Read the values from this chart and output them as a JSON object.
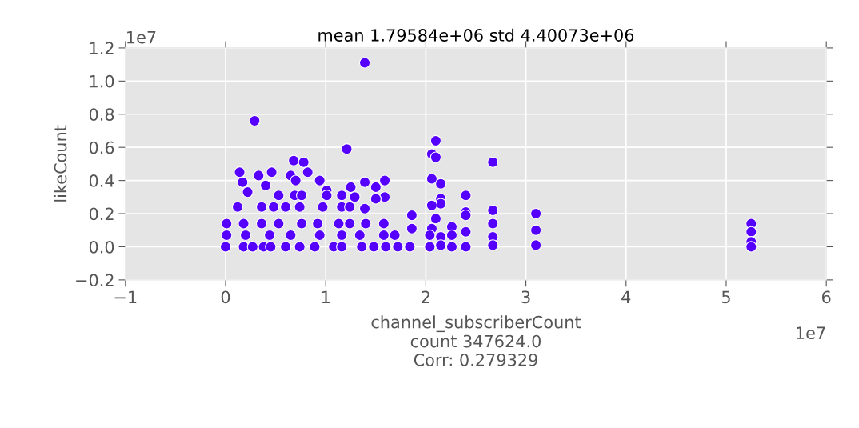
{
  "chart_data": {
    "type": "scatter",
    "title": "mean 1.79584e+06 std 4.40073e+06",
    "xlabel": "channel_subscriberCount\ncount 347624.0\nCorr: 0.279329",
    "ylabel": "likeCount",
    "annotations": [
      "1e7",
      "1e7"
    ],
    "xlim": [
      -1,
      6
    ],
    "ylim": [
      -0.2,
      1.2
    ],
    "xticks": [
      -1,
      0,
      1,
      2,
      3,
      4,
      5,
      6
    ],
    "yticks": [
      {
        "value": -0.2,
        "label": "−0.2"
      },
      {
        "value": 0,
        "label": "0.0"
      },
      0.2,
      0.4,
      0.6,
      0.8,
      {
        "value": 1,
        "label": "1.0"
      },
      1.2
    ],
    "grid": true,
    "marker": "circle",
    "series": [
      {
        "color": "#5500ff",
        "x": [
          1.39,
          0.29,
          1.21,
          0.14,
          0.17,
          0.33,
          0.4,
          0.46,
          0.22,
          0.65,
          0.68,
          0.78,
          0.82,
          0.7,
          0.94,
          1.01,
          1.25,
          1.29,
          1.39,
          1.5,
          1.59,
          1.59,
          1.5,
          1.39,
          1.86,
          2.1,
          2.06,
          2.1,
          2.06,
          2.15,
          2.15,
          2.15,
          2.06,
          2.1,
          2.06,
          2.15,
          2.15,
          1.86,
          1.84,
          2.26,
          2.26,
          2.26,
          2.4,
          2.4,
          2.4,
          2.4,
          2.4,
          2.67,
          2.67,
          2.67,
          2.67,
          2.67,
          3.1,
          3.1,
          3.1,
          5.25,
          5.25,
          5.25,
          5.25,
          0.0,
          0.18,
          0.27,
          0.38,
          0.45,
          0.6,
          0.74,
          0.89,
          1.08,
          1.16,
          1.36,
          1.48,
          1.6,
          1.72,
          2.04,
          0.01,
          0.18,
          0.36,
          0.53,
          0.76,
          0.92,
          1.13,
          1.24,
          1.4,
          1.58,
          0.12,
          0.36,
          0.48,
          0.6,
          0.74,
          0.97,
          1.16,
          1.24,
          0.53,
          0.69,
          0.76,
          1.01,
          1.16,
          0.01,
          0.2,
          0.44,
          0.65,
          0.94,
          1.16,
          1.34,
          1.58,
          1.69,
          2.04
        ],
        "values": [
          1.11,
          0.76,
          0.59,
          0.45,
          0.39,
          0.43,
          0.37,
          0.45,
          0.33,
          0.43,
          0.52,
          0.51,
          0.45,
          0.4,
          0.4,
          0.34,
          0.36,
          0.3,
          0.39,
          0.36,
          0.4,
          0.3,
          0.29,
          0.23,
          0.19,
          0.64,
          0.56,
          0.54,
          0.41,
          0.38,
          0.29,
          0.26,
          0.25,
          0.17,
          0.11,
          0.06,
          0.01,
          0.11,
          0.0,
          0.12,
          0.07,
          0.0,
          0.31,
          0.21,
          0.19,
          0.09,
          0.0,
          0.51,
          0.22,
          0.14,
          0.06,
          0.01,
          0.2,
          0.1,
          0.01,
          0.14,
          0.09,
          0.03,
          0.0,
          0.0,
          0.0,
          0.0,
          0.0,
          0.0,
          0.0,
          0.0,
          0.0,
          0.0,
          0.0,
          0.0,
          0.0,
          0.0,
          0.0,
          0.0,
          0.14,
          0.14,
          0.14,
          0.14,
          0.14,
          0.14,
          0.14,
          0.14,
          0.14,
          0.14,
          0.24,
          0.24,
          0.24,
          0.24,
          0.24,
          0.24,
          0.24,
          0.24,
          0.31,
          0.31,
          0.31,
          0.31,
          0.31,
          0.07,
          0.07,
          0.07,
          0.07,
          0.07,
          0.07,
          0.07,
          0.07,
          0.07,
          0.07
        ]
      }
    ]
  }
}
